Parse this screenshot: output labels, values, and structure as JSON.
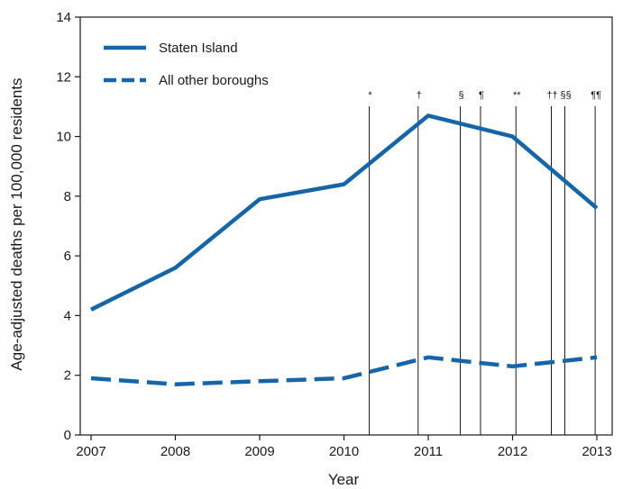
{
  "chart_data": {
    "type": "line",
    "xlabel": "Year",
    "ylabel": "Age-adjusted deaths per 100,000 residents",
    "xlim": [
      2007,
      2013
    ],
    "ylim": [
      0,
      14
    ],
    "x_ticks": [
      "2007",
      "2008",
      "2009",
      "2010",
      "2011",
      "2012",
      "2013"
    ],
    "y_ticks": [
      "0",
      "2",
      "4",
      "6",
      "8",
      "10",
      "12",
      "14"
    ],
    "grid": false,
    "legend_position": "top-left",
    "series": [
      {
        "name": "Staten Island",
        "style": "solid",
        "color": "#1565a8",
        "x": [
          2007,
          2008,
          2009,
          2010,
          2011,
          2012,
          2013
        ],
        "values": [
          4.2,
          5.6,
          7.9,
          8.4,
          10.7,
          10.0,
          7.6
        ]
      },
      {
        "name": "All other boroughs",
        "style": "dashed",
        "color": "#1565a8",
        "x": [
          2007,
          2008,
          2009,
          2010,
          2011,
          2012,
          2013
        ],
        "values": [
          1.9,
          1.7,
          1.8,
          1.9,
          2.6,
          2.3,
          2.6
        ]
      }
    ],
    "annotations": [
      {
        "label": "*",
        "x": 2010.3
      },
      {
        "label": "†",
        "x": 2010.88
      },
      {
        "label": "§",
        "x": 2011.38
      },
      {
        "label": "¶",
        "x": 2011.62
      },
      {
        "label": "**",
        "x": 2012.04
      },
      {
        "label": "††",
        "x": 2012.46
      },
      {
        "label": "§§",
        "x": 2012.62
      },
      {
        "label": "¶¶",
        "x": 2012.98
      }
    ]
  }
}
